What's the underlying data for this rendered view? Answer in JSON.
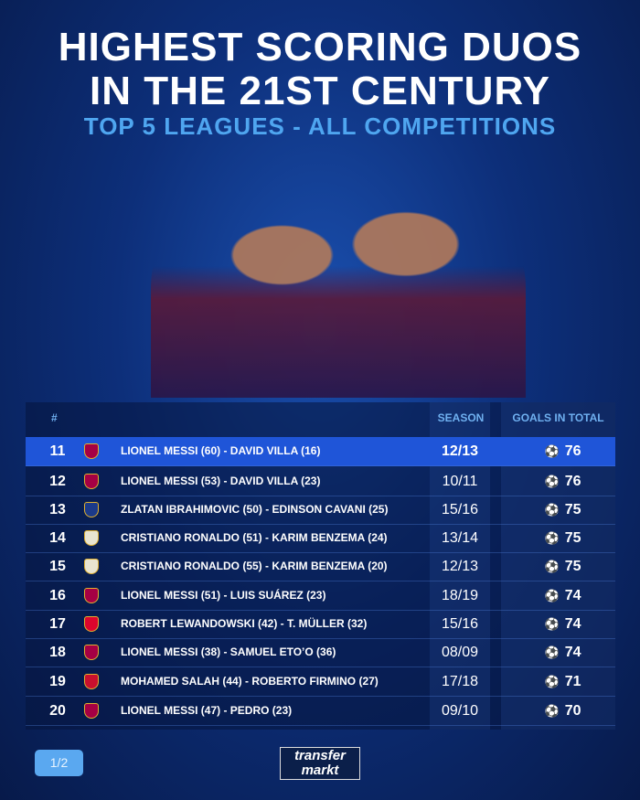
{
  "header": {
    "line1": "HIGHEST SCORING DUOS",
    "line2": "IN THE 21ST CENTURY",
    "subtitle": "TOP 5 LEAGUES - ALL COMPETITIONS"
  },
  "table": {
    "columns": {
      "rank": "#",
      "season": "SEASON",
      "goals": "GOALS IN TOTAL"
    },
    "rows": [
      {
        "rank": "11",
        "club": "barcelona",
        "duo": "LIONEL MESSI (60) - DAVID VILLA (16)",
        "season": "12/13",
        "goals": "76",
        "highlight": true
      },
      {
        "rank": "12",
        "club": "barcelona",
        "duo": "LIONEL MESSI (53) - DAVID VILLA (23)",
        "season": "10/11",
        "goals": "76"
      },
      {
        "rank": "13",
        "club": "psg",
        "duo": "ZLATAN IBRAHIMOVIC (50) - EDINSON CAVANI (25)",
        "season": "15/16",
        "goals": "75"
      },
      {
        "rank": "14",
        "club": "real-madrid",
        "duo": "CRISTIANO RONALDO (51) - KARIM BENZEMA (24)",
        "season": "13/14",
        "goals": "75"
      },
      {
        "rank": "15",
        "club": "real-madrid",
        "duo": "CRISTIANO RONALDO (55) - KARIM BENZEMA (20)",
        "season": "12/13",
        "goals": "75"
      },
      {
        "rank": "16",
        "club": "barcelona",
        "duo": "LIONEL MESSI (51) - LUIS SUÁREZ (23)",
        "season": "18/19",
        "goals": "74"
      },
      {
        "rank": "17",
        "club": "bayern",
        "duo": "ROBERT LEWANDOWSKI (42) - T. MÜLLER (32)",
        "season": "15/16",
        "goals": "74"
      },
      {
        "rank": "18",
        "club": "barcelona",
        "duo": "LIONEL MESSI (38) - SAMUEL ETO’O (36)",
        "season": "08/09",
        "goals": "74"
      },
      {
        "rank": "19",
        "club": "liverpool",
        "duo": "MOHAMED SALAH (44) - ROBERTO FIRMINO (27)",
        "season": "17/18",
        "goals": "71"
      },
      {
        "rank": "20",
        "club": "barcelona",
        "duo": "LIONEL MESSI (47) - PEDRO (23)",
        "season": "09/10",
        "goals": "70"
      }
    ]
  },
  "club_colors": {
    "barcelona": "#a50044",
    "psg": "#1b3a8a",
    "real-madrid": "#e8e4d0",
    "bayern": "#dc052d",
    "liverpool": "#c8102e"
  },
  "footer": {
    "page": "1/2",
    "logo_line1": "transfer",
    "logo_line2": "markt"
  },
  "colors": {
    "accent": "#4fa6f0",
    "highlight_row": "#1f55d8"
  }
}
